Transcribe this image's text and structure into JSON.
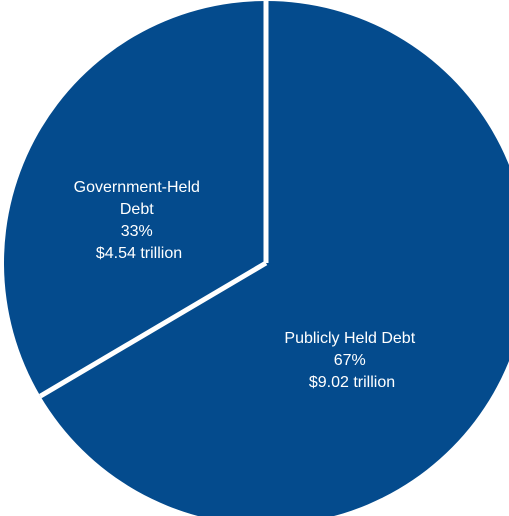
{
  "chart_data": {
    "type": "pie",
    "slices": [
      {
        "name": "Publicly Held Debt",
        "percent_label": "67%",
        "amount_label": "$9.02 trillion",
        "value": 9.02,
        "color": "#044b8d"
      },
      {
        "name": "Government-Held Debt",
        "name_lines": [
          "Government-Held",
          "Debt"
        ],
        "percent_label": "33%",
        "amount_label": "$4.54 trillion",
        "value": 4.54,
        "color": "#044b8d"
      }
    ],
    "separator_color": "#ffffff",
    "start_angle_deg": 0,
    "direction": "clockwise",
    "legend": "none"
  }
}
